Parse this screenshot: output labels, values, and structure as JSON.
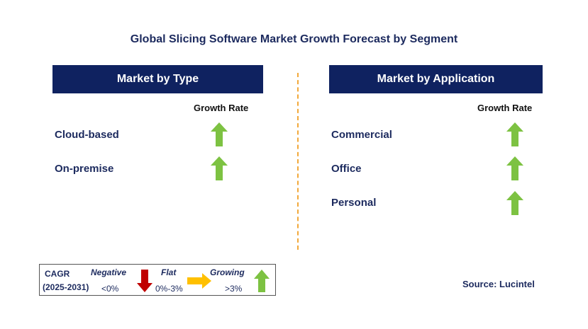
{
  "title": "Global Slicing Software Market Growth Forecast by Segment",
  "left_panel": {
    "header": "Market by Type",
    "growth_rate_label": "Growth Rate",
    "segments": [
      {
        "label": "Cloud-based",
        "trend": "growing"
      },
      {
        "label": "On-premise",
        "trend": "growing"
      }
    ]
  },
  "right_panel": {
    "header": "Market by Application",
    "growth_rate_label": "Growth Rate",
    "segments": [
      {
        "label": "Commercial",
        "trend": "growing"
      },
      {
        "label": "Office",
        "trend": "growing"
      },
      {
        "label": "Personal",
        "trend": "growing"
      }
    ]
  },
  "legend": {
    "cagr_label": "CAGR",
    "period": "(2025-2031)",
    "negative_label": "Negative",
    "negative_range": "<0%",
    "flat_label": "Flat",
    "flat_range": "0%-3%",
    "growing_label": "Growing",
    "growing_range": ">3%"
  },
  "source": "Source: Lucintel",
  "colors": {
    "header_bg": "#0f2260",
    "growing": "#7dc242",
    "negative": "#c00000",
    "flat": "#ffc000",
    "divider": "#f2a93b"
  },
  "icons": {
    "growing": "up-arrow-icon",
    "negative": "down-arrow-icon",
    "flat": "right-arrow-icon"
  }
}
